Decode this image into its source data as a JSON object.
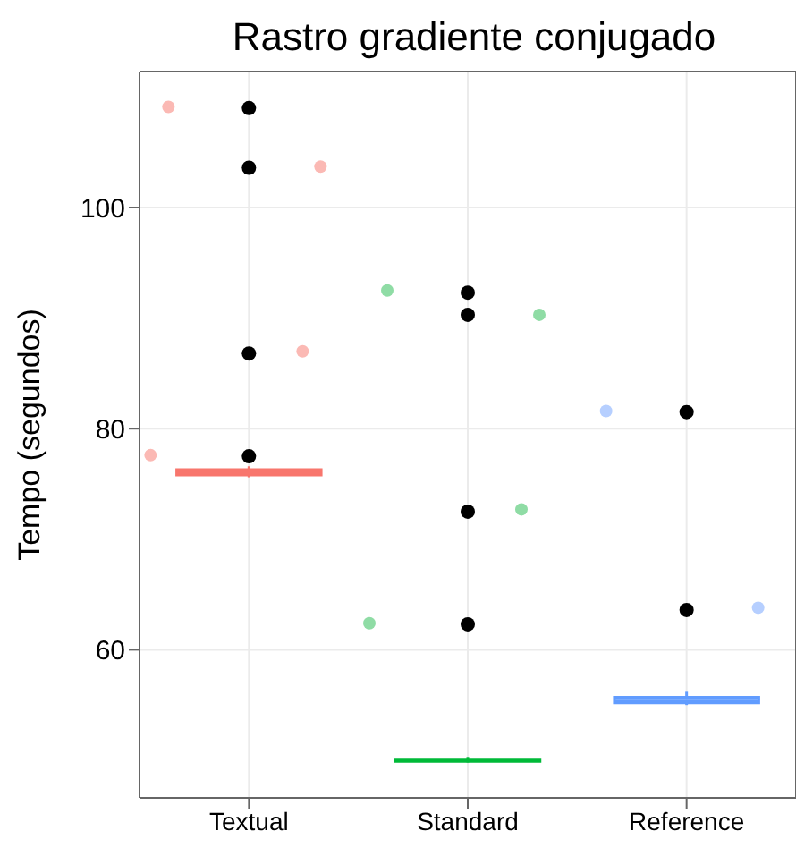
{
  "chart_data": {
    "type": "box",
    "title": "Rastro gradiente conjugado",
    "ylabel": "Tempo (segundos)",
    "categories": [
      "Textual",
      "Standard",
      "Reference"
    ],
    "colors": [
      "#f8766d",
      "#00ba38",
      "#619cff"
    ],
    "boxes": [
      {
        "low": 75.6,
        "q1": 75.8,
        "median": 76,
        "q3": 76.3,
        "high": 76.6,
        "outliers": [
          109,
          103.6,
          86.8,
          77.5
        ]
      },
      {
        "low": 49.8,
        "q1": 49.9,
        "median": 50,
        "q3": 50.1,
        "high": 50.3,
        "outliers": [
          92.3,
          90.3,
          72.5,
          62.3
        ]
      },
      {
        "low": 55,
        "q1": 55.2,
        "median": 55.4,
        "q3": 55.7,
        "high": 56.2,
        "outliers": [
          81.5,
          63.6
        ]
      }
    ],
    "series": [
      {
        "type": "scatter",
        "color": "#fbb9b4",
        "x": [
          "Textual",
          "Textual",
          "Textual",
          "Textual"
        ],
        "values": [
          109.1,
          103.7,
          87,
          77.6
        ]
      },
      {
        "type": "scatter",
        "color": "#8fdca5",
        "x": [
          "Standard",
          "Standard",
          "Standard",
          "Standard"
        ],
        "values": [
          92.5,
          90.3,
          72.7,
          62.4
        ]
      },
      {
        "type": "scatter",
        "color": "#b6cfff",
        "x": [
          "Reference",
          "Reference"
        ],
        "values": [
          81.6,
          63.8
        ]
      }
    ],
    "ylim": [
      46.6,
      112.3
    ],
    "yticks": [
      60,
      80,
      100
    ],
    "grid": true
  }
}
